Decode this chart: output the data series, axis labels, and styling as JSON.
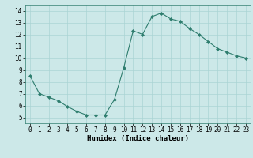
{
  "x": [
    0,
    1,
    2,
    3,
    4,
    5,
    6,
    7,
    8,
    9,
    10,
    11,
    12,
    13,
    14,
    15,
    16,
    17,
    18,
    19,
    20,
    21,
    22,
    23
  ],
  "y": [
    8.5,
    7.0,
    6.7,
    6.4,
    5.9,
    5.5,
    5.2,
    5.2,
    5.2,
    6.5,
    9.2,
    12.3,
    12.0,
    13.5,
    13.8,
    13.3,
    13.1,
    12.5,
    12.0,
    11.4,
    10.8,
    10.5,
    10.2,
    10.0
  ],
  "xlabel": "Humidex (Indice chaleur)",
  "xlim": [
    -0.5,
    23.5
  ],
  "ylim": [
    4.5,
    14.5
  ],
  "yticks": [
    5,
    6,
    7,
    8,
    9,
    10,
    11,
    12,
    13,
    14
  ],
  "xticks": [
    0,
    1,
    2,
    3,
    4,
    5,
    6,
    7,
    8,
    9,
    10,
    11,
    12,
    13,
    14,
    15,
    16,
    17,
    18,
    19,
    20,
    21,
    22,
    23
  ],
  "line_color": "#2e7d6e",
  "bg_color": "#cce8e8",
  "grid_color": "#aad4d4",
  "tick_fontsize": 5.5,
  "label_fontsize": 6.5
}
